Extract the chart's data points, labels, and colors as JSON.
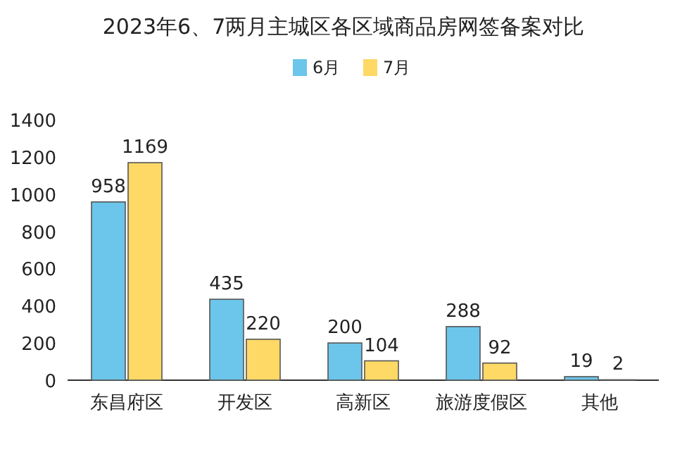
{
  "chart_data": {
    "type": "bar",
    "title": "2023年6、7两月主城区各区域商品房网签备案对比",
    "categories": [
      "东昌府区",
      "开发区",
      "高新区",
      "旅游度假区",
      "其他"
    ],
    "series": [
      {
        "name": "6月",
        "color": "#6cc5ea",
        "values": [
          958,
          435,
          200,
          288,
          19
        ]
      },
      {
        "name": "7月",
        "color": "#ffd966",
        "values": [
          1169,
          220,
          104,
          92,
          2
        ]
      }
    ],
    "ylim": [
      0,
      1400
    ],
    "yticks": [
      0,
      200,
      400,
      600,
      800,
      1000,
      1200,
      1400
    ],
    "data_labels": true,
    "legend": "top",
    "grid": false
  }
}
